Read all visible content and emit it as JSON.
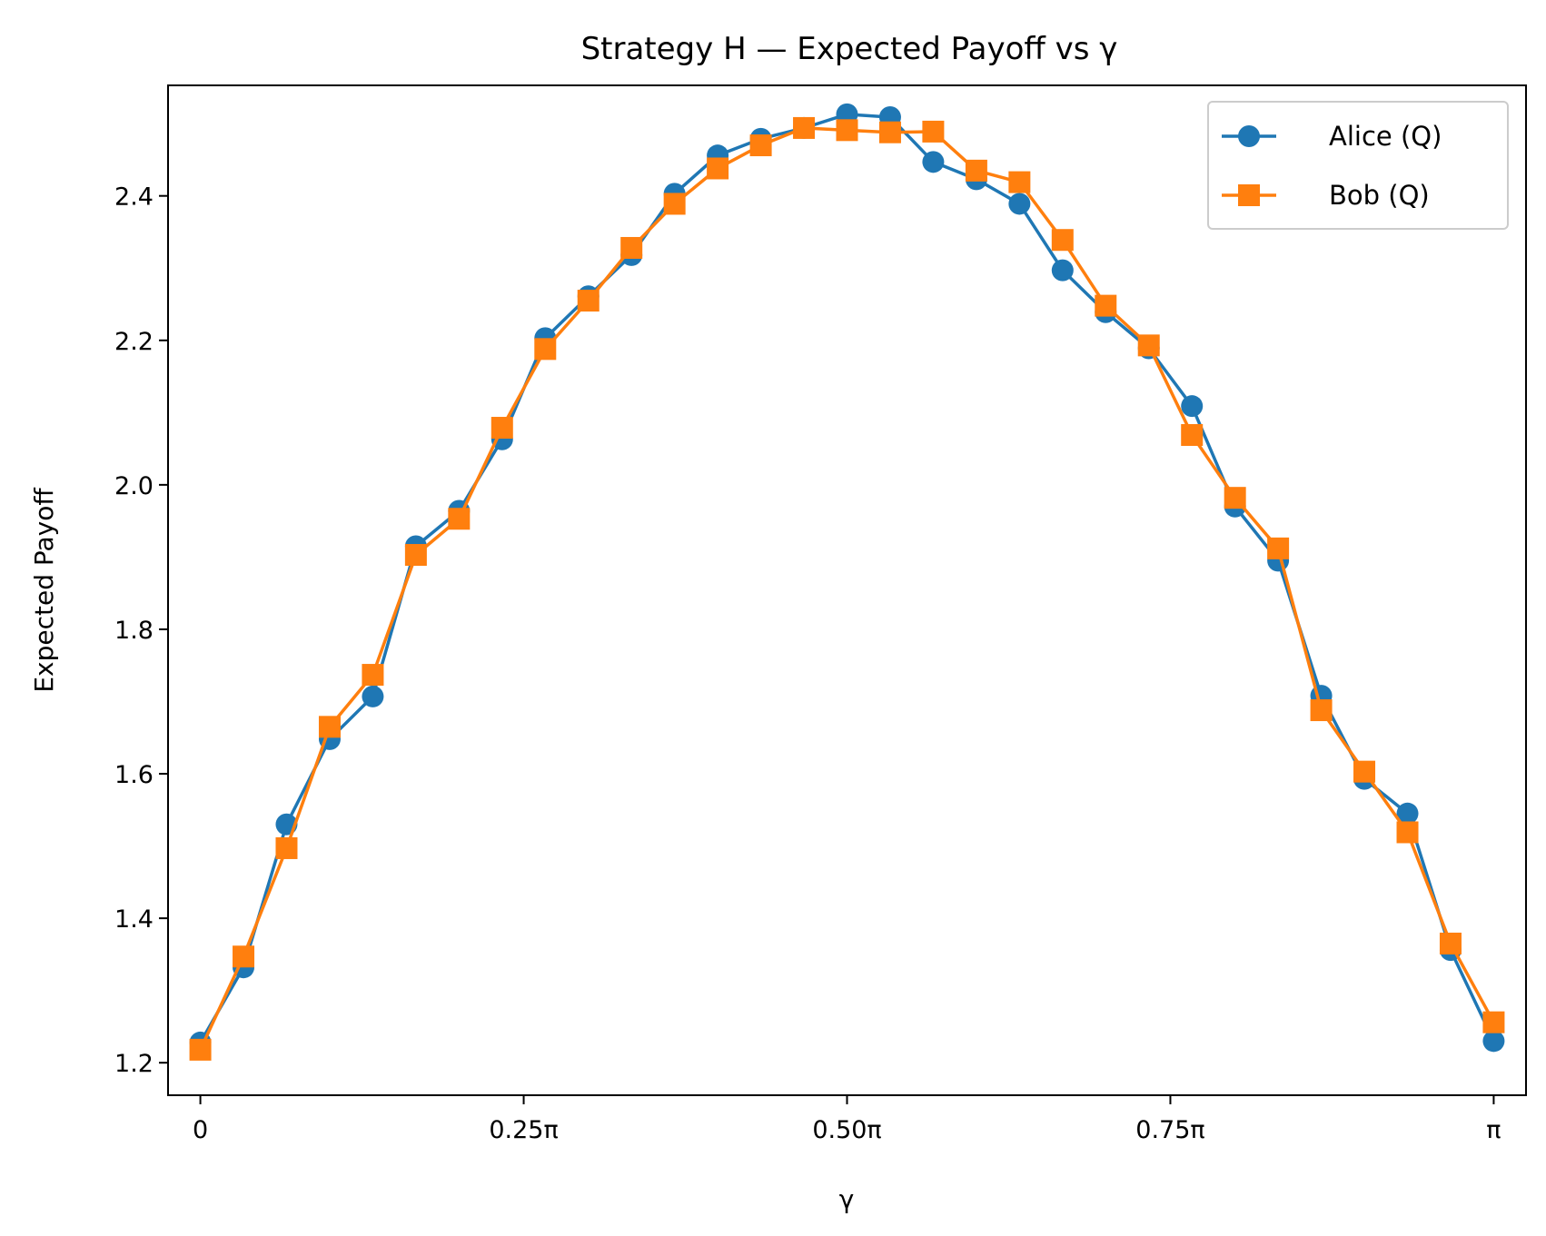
{
  "chart_data": {
    "type": "line",
    "title": "Strategy H — Expected Payoff vs γ",
    "xlabel": "γ",
    "ylabel": "Expected Payoff",
    "xlim": [
      -0.0785,
      3.2201
    ],
    "ylim": [
      1.155,
      2.553
    ],
    "xticks": [
      {
        "value": 0,
        "label": "0"
      },
      {
        "value": 0.7854,
        "label": "0.25π"
      },
      {
        "value": 1.5708,
        "label": "0.50π"
      },
      {
        "value": 2.3562,
        "label": "0.75π"
      },
      {
        "value": 3.1416,
        "label": "π"
      }
    ],
    "yticks": [
      {
        "value": 1.2,
        "label": "1.2"
      },
      {
        "value": 1.4,
        "label": "1.4"
      },
      {
        "value": 1.6,
        "label": "1.6"
      },
      {
        "value": 1.8,
        "label": "1.8"
      },
      {
        "value": 2.0,
        "label": "2.0"
      },
      {
        "value": 2.2,
        "label": "2.2"
      },
      {
        "value": 2.4,
        "label": "2.4"
      }
    ],
    "grid": false,
    "legend_position": "top-right",
    "x": [
      0,
      0.1047,
      0.2094,
      0.3142,
      0.4189,
      0.5236,
      0.6283,
      0.733,
      0.8378,
      0.9425,
      1.0472,
      1.1519,
      1.2566,
      1.3614,
      1.4661,
      1.5708,
      1.6755,
      1.7802,
      1.885,
      1.9897,
      2.0944,
      2.1991,
      2.3038,
      2.4086,
      2.5133,
      2.618,
      2.7227,
      2.8274,
      2.9322,
      3.0369,
      3.1416
    ],
    "series": [
      {
        "name": "Alice (Q)",
        "color": "#1f77b4",
        "marker": "circle",
        "values": [
          1.228,
          1.332,
          1.53,
          1.648,
          1.707,
          1.915,
          1.964,
          2.063,
          2.203,
          2.261,
          2.318,
          2.403,
          2.456,
          2.479,
          2.494,
          2.513,
          2.509,
          2.447,
          2.423,
          2.389,
          2.297,
          2.239,
          2.189,
          2.109,
          1.97,
          1.895,
          1.708,
          1.593,
          1.545,
          1.356,
          1.23
        ]
      },
      {
        "name": "Bob (Q)",
        "color": "#ff7f0e",
        "marker": "square",
        "values": [
          1.218,
          1.347,
          1.497,
          1.665,
          1.737,
          1.903,
          1.953,
          2.079,
          2.188,
          2.255,
          2.328,
          2.389,
          2.438,
          2.47,
          2.494,
          2.491,
          2.488,
          2.489,
          2.435,
          2.419,
          2.339,
          2.248,
          2.193,
          2.069,
          1.982,
          1.912,
          1.688,
          1.603,
          1.519,
          1.365,
          1.256
        ]
      }
    ]
  }
}
